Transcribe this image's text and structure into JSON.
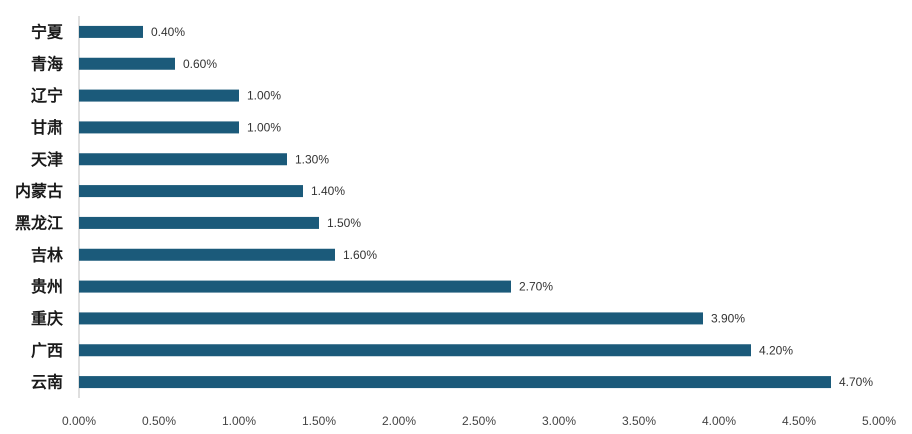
{
  "chart_data": {
    "type": "bar",
    "orientation": "horizontal",
    "title": "",
    "xlabel": "",
    "ylabel": "",
    "categories": [
      "宁夏",
      "青海",
      "辽宁",
      "甘肃",
      "天津",
      "内蒙古",
      "黑龙江",
      "吉林",
      "贵州",
      "重庆",
      "广西",
      "云南"
    ],
    "values": [
      0.4,
      0.6,
      1.0,
      1.0,
      1.3,
      1.4,
      1.5,
      1.6,
      2.7,
      3.9,
      4.2,
      4.7
    ],
    "value_labels": [
      "0.40%",
      "0.60%",
      "1.00%",
      "1.00%",
      "1.30%",
      "1.40%",
      "1.50%",
      "1.60%",
      "2.70%",
      "3.90%",
      "4.20%",
      "4.70%"
    ],
    "xlim": [
      0,
      5.0
    ],
    "x_ticks": [
      0,
      0.5,
      1.0,
      1.5,
      2.0,
      2.5,
      3.0,
      3.5,
      4.0,
      4.5,
      5.0
    ],
    "x_tick_labels": [
      "0.00%",
      "0.50%",
      "1.00%",
      "1.50%",
      "2.00%",
      "2.50%",
      "3.00%",
      "3.50%",
      "4.00%",
      "4.50%",
      "5.00%"
    ],
    "grid": false,
    "legend": "none",
    "bar_color": "#1b5a7a"
  }
}
